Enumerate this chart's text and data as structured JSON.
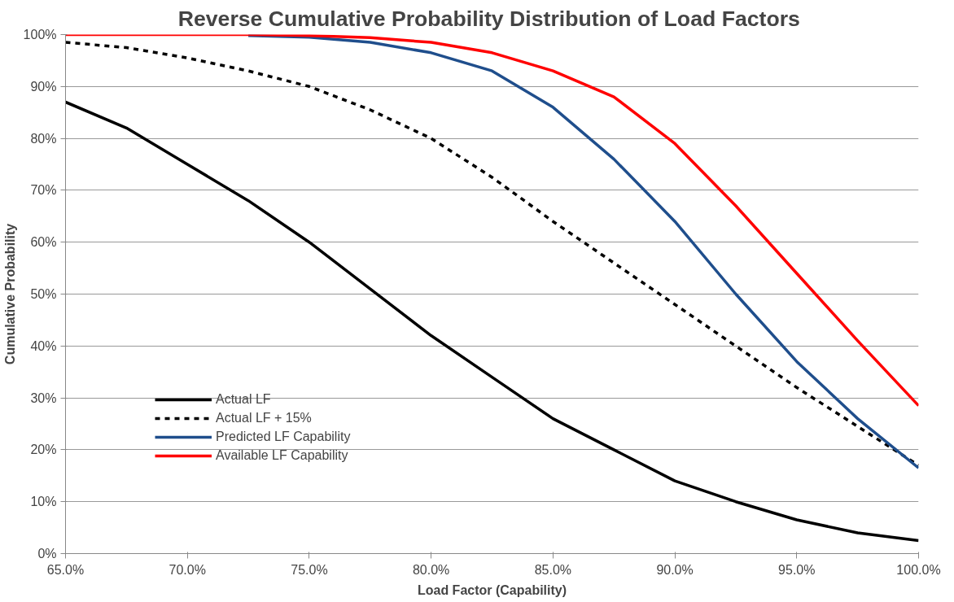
{
  "chart_data": {
    "type": "line",
    "title": "Reverse Cumulative Probability  Distribution of Load Factors",
    "xlabel": "Load Factor (Capability)",
    "ylabel": "Cumulative Probability",
    "x": [
      65,
      67.5,
      70,
      72.5,
      75,
      77.5,
      80,
      82.5,
      85,
      87.5,
      90,
      92.5,
      95,
      97.5,
      100
    ],
    "series": [
      {
        "name": "Actual LF",
        "color": "#000000",
        "line_style": "solid",
        "values": [
          87,
          82,
          75,
          68,
          60,
          51,
          42,
          34,
          26,
          20,
          14,
          10,
          6.5,
          4,
          2.5
        ]
      },
      {
        "name": "Actual LF + 15%",
        "color": "#000000",
        "line_style": "dashed",
        "values": [
          98.5,
          97.5,
          95.5,
          93,
          90,
          85.5,
          80,
          72.5,
          64,
          56,
          48,
          40,
          32,
          24.5,
          17
        ]
      },
      {
        "name": "Predicted LF Capability",
        "color": "#1f4e8c",
        "line_style": "solid",
        "values": [
          null,
          null,
          null,
          99.8,
          99.5,
          98.5,
          96.5,
          93,
          86,
          76,
          64,
          50,
          37,
          26,
          16.5
        ]
      },
      {
        "name": "Available LF Capability",
        "color": "#ff0000",
        "line_style": "solid",
        "values": [
          100,
          100,
          100,
          100,
          99.8,
          99.4,
          98.5,
          96.5,
          93,
          88,
          79,
          67,
          54,
          41,
          28.5
        ]
      }
    ],
    "xlim": [
      65,
      100
    ],
    "ylim": [
      0,
      100
    ],
    "xticks": [
      {
        "value": 65,
        "label": "65.0%"
      },
      {
        "value": 70,
        "label": "70.0%"
      },
      {
        "value": 75,
        "label": "75.0%"
      },
      {
        "value": 80,
        "label": "80.0%"
      },
      {
        "value": 85,
        "label": "85.0%"
      },
      {
        "value": 90,
        "label": "90.0%"
      },
      {
        "value": 95,
        "label": "95.0%"
      },
      {
        "value": 100,
        "label": "100.0%"
      }
    ],
    "yticks": [
      {
        "value": 0,
        "label": "0%"
      },
      {
        "value": 10,
        "label": "10%"
      },
      {
        "value": 20,
        "label": "20%"
      },
      {
        "value": 30,
        "label": "30%"
      },
      {
        "value": 40,
        "label": "40%"
      },
      {
        "value": 50,
        "label": "50%"
      },
      {
        "value": 60,
        "label": "60%"
      },
      {
        "value": 70,
        "label": "70%"
      },
      {
        "value": 80,
        "label": "80%"
      },
      {
        "value": 90,
        "label": "90%"
      },
      {
        "value": 100,
        "label": "100%"
      }
    ],
    "grid": "y",
    "legend": "bottom left",
    "marker": "none"
  }
}
